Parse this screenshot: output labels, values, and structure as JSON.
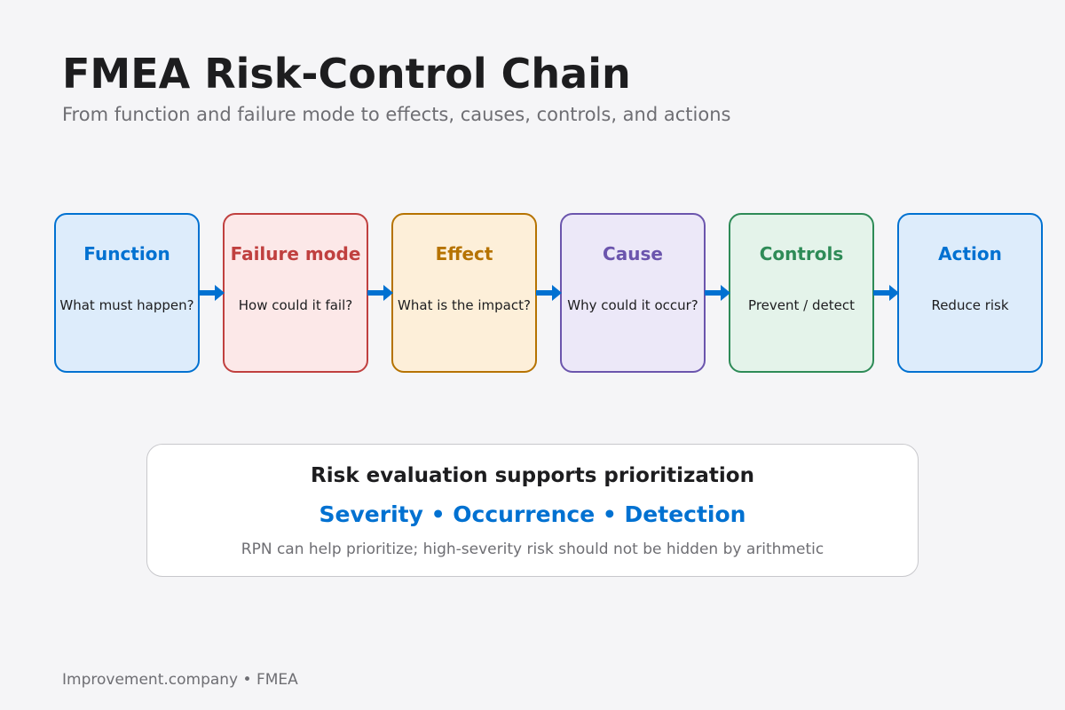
{
  "header": {
    "title": "FMEA Risk-Control Chain",
    "subtitle": "From function and failure mode to effects, causes, controls, and actions"
  },
  "chain": {
    "steps": [
      {
        "title": "Function",
        "description": "What must happen?",
        "border_color": "#0071d1",
        "fill_color": "#ddecfb",
        "title_color": "#0071d1"
      },
      {
        "title": "Failure mode",
        "description": "How could it fail?",
        "border_color": "#c0403f",
        "fill_color": "#fce8e8",
        "title_color": "#c0403f"
      },
      {
        "title": "Effect",
        "description": "What is the impact?",
        "border_color": "#b67300",
        "fill_color": "#fdefd9",
        "title_color": "#b67300"
      },
      {
        "title": "Cause",
        "description": "Why could it occur?",
        "border_color": "#6b55ad",
        "fill_color": "#ece8f8",
        "title_color": "#6b55ad"
      },
      {
        "title": "Controls",
        "description": "Prevent / detect",
        "border_color": "#2e8b57",
        "fill_color": "#e4f3ea",
        "title_color": "#2e8b57"
      },
      {
        "title": "Action",
        "description": "Reduce risk",
        "border_color": "#0071d1",
        "fill_color": "#ddecfb",
        "title_color": "#0071d1"
      }
    ],
    "arrow_color": "#0071d1"
  },
  "risk_panel": {
    "heading": "Risk evaluation supports prioritization",
    "factors": "Severity • Occurrence • Detection",
    "note": "RPN can help prioritize; high-severity risk should not be hidden by arithmetic"
  },
  "footer": {
    "text": "Improvement.company • FMEA"
  }
}
